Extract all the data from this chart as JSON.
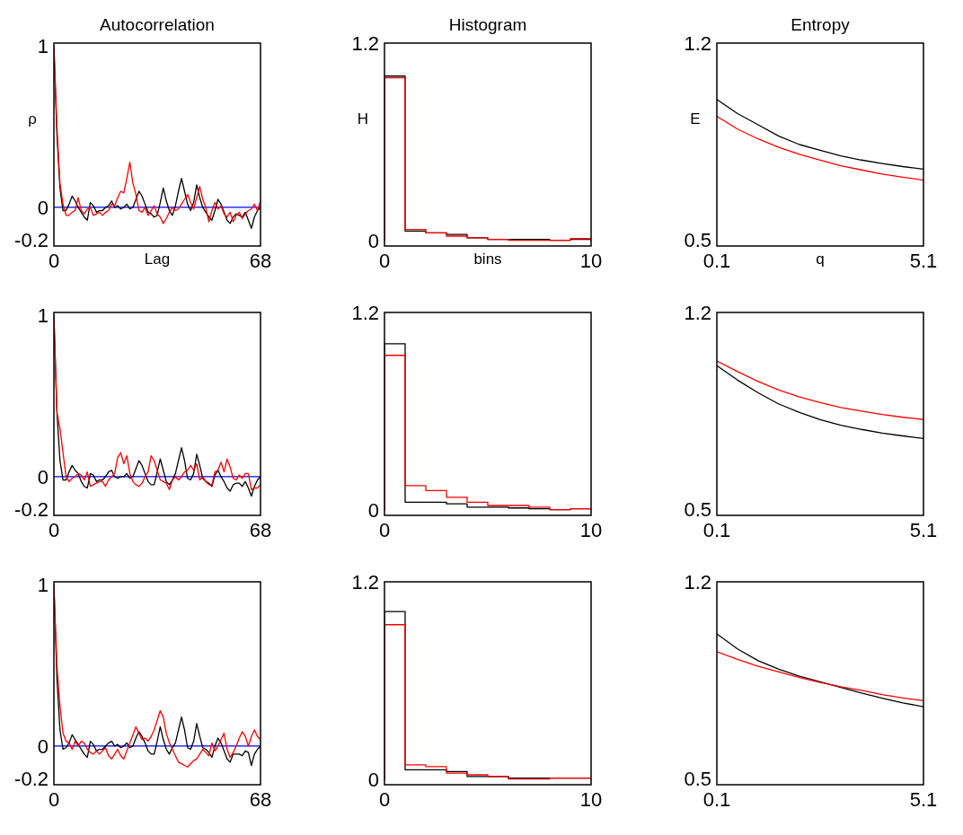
{
  "chart_data": [
    {
      "type": "line",
      "title": "Autocorrelation",
      "xlabel": "Lag",
      "ylabel": "ρ",
      "xlim": [
        0,
        68
      ],
      "xticks": [
        0,
        68
      ],
      "ylim": [
        -0.24,
        1.02
      ],
      "yticks": [
        -0.2,
        0,
        1
      ],
      "ref_lines": [
        {
          "axis": "y",
          "value": 0,
          "color": "#0000ff"
        }
      ],
      "x": [
        0,
        1,
        2,
        3,
        4,
        5,
        6,
        7,
        8,
        9,
        10,
        11,
        12,
        13,
        14,
        15,
        16,
        17,
        18,
        19,
        20,
        21,
        22,
        23,
        24,
        25,
        26,
        27,
        28,
        29,
        30,
        31,
        32,
        33,
        34,
        35,
        36,
        37,
        38,
        39,
        40,
        41,
        42,
        43,
        44,
        45,
        46,
        47,
        48,
        49,
        50,
        51,
        52,
        53,
        54,
        55,
        56,
        57,
        58,
        59,
        60,
        61,
        62,
        63,
        64,
        65,
        66,
        67,
        68
      ],
      "series": [
        {
          "color": "#000000",
          "values": [
            1.0,
            0.45,
            0.12,
            -0.02,
            -0.02,
            0.02,
            0.07,
            0.04,
            0.0,
            -0.03,
            -0.06,
            -0.08,
            0.03,
            0.01,
            -0.03,
            -0.02,
            -0.02,
            0.0,
            0.01,
            0.04,
            0.0,
            0.01,
            -0.01,
            0.0,
            0.02,
            -0.01,
            0.0,
            0.05,
            0.1,
            0.07,
            0.02,
            -0.03,
            -0.04,
            -0.06,
            -0.05,
            0.03,
            0.12,
            0.04,
            -0.02,
            -0.05,
            0.01,
            0.1,
            0.18,
            0.1,
            0.02,
            -0.02,
            0.03,
            0.14,
            0.06,
            0.0,
            -0.03,
            -0.06,
            -0.08,
            -0.02,
            0.05,
            0.02,
            -0.03,
            -0.08,
            -0.1,
            -0.06,
            -0.04,
            -0.05,
            -0.06,
            -0.03,
            -0.08,
            -0.13,
            -0.06,
            -0.02,
            0.0
          ]
        },
        {
          "color": "#ff0000",
          "values": [
            1.0,
            0.5,
            0.15,
            0.02,
            -0.05,
            -0.05,
            -0.03,
            -0.02,
            0.06,
            -0.02,
            -0.04,
            -0.01,
            0.0,
            -0.05,
            -0.04,
            -0.03,
            -0.05,
            -0.03,
            -0.02,
            0.02,
            0.01,
            0.06,
            0.1,
            0.09,
            0.18,
            0.28,
            0.15,
            0.08,
            -0.02,
            -0.03,
            0.0,
            -0.05,
            -0.02,
            0.01,
            -0.04,
            -0.06,
            -0.1,
            -0.07,
            -0.03,
            0.0,
            -0.02,
            -0.01,
            0.02,
            0.05,
            0.08,
            0.03,
            -0.01,
            0.06,
            0.13,
            0.05,
            0.0,
            -0.09,
            -0.02,
            0.03,
            -0.01,
            0.01,
            -0.04,
            -0.06,
            -0.03,
            -0.09,
            -0.05,
            -0.03,
            -0.07,
            -0.04,
            -0.02,
            -0.01,
            0.02,
            -0.02,
            0.04
          ]
        }
      ]
    },
    {
      "type": "histogram",
      "title": "Histogram",
      "xlabel": "bins",
      "ylabel": "H",
      "xlim": [
        0,
        10
      ],
      "xticks": [
        0,
        10
      ],
      "ylim": [
        -0.03,
        1.2
      ],
      "yticks": [
        0,
        1.2
      ],
      "bins": [
        0,
        1,
        2,
        3,
        4,
        5,
        6,
        7,
        8,
        9,
        10
      ],
      "series": [
        {
          "color": "#000000",
          "values": [
            1.0,
            0.06,
            0.05,
            0.04,
            0.02,
            0.01,
            0.01,
            0.01,
            0.005,
            0.01
          ]
        },
        {
          "color": "#ff0000",
          "values": [
            0.99,
            0.07,
            0.05,
            0.03,
            0.02,
            0.01,
            0.005,
            0.005,
            0.005,
            0.015
          ]
        }
      ]
    },
    {
      "type": "line",
      "title": "Entropy",
      "xlabel": "q",
      "ylabel": "E",
      "xlim": [
        0.1,
        5.1
      ],
      "xticks": [
        0.1,
        5.1
      ],
      "ylim": [
        0.48,
        1.2
      ],
      "yticks": [
        0.5,
        1.2
      ],
      "x": [
        0.1,
        0.6,
        1.1,
        1.6,
        2.1,
        2.6,
        3.1,
        3.6,
        4.1,
        4.6,
        5.1
      ],
      "series": [
        {
          "color": "#000000",
          "values": [
            1.0,
            0.95,
            0.91,
            0.87,
            0.84,
            0.82,
            0.8,
            0.785,
            0.773,
            0.762,
            0.753
          ]
        },
        {
          "color": "#ff0000",
          "values": [
            0.94,
            0.895,
            0.86,
            0.83,
            0.805,
            0.785,
            0.765,
            0.75,
            0.735,
            0.724,
            0.714
          ]
        }
      ]
    },
    {
      "type": "line",
      "xlim": [
        0,
        68
      ],
      "xticks": [
        0,
        68
      ],
      "ylim": [
        -0.24,
        1.02
      ],
      "yticks": [
        -0.2,
        0,
        1
      ],
      "ref_lines": [
        {
          "axis": "y",
          "value": 0,
          "color": "#0000ff"
        }
      ],
      "x": [
        0,
        1,
        2,
        3,
        4,
        5,
        6,
        7,
        8,
        9,
        10,
        11,
        12,
        13,
        14,
        15,
        16,
        17,
        18,
        19,
        20,
        21,
        22,
        23,
        24,
        25,
        26,
        27,
        28,
        29,
        30,
        31,
        32,
        33,
        34,
        35,
        36,
        37,
        38,
        39,
        40,
        41,
        42,
        43,
        44,
        45,
        46,
        47,
        48,
        49,
        50,
        51,
        52,
        53,
        54,
        55,
        56,
        57,
        58,
        59,
        60,
        61,
        62,
        63,
        64,
        65,
        66,
        67,
        68
      ],
      "series": [
        {
          "color": "#000000",
          "values": [
            1.0,
            0.4,
            0.1,
            -0.02,
            -0.02,
            0.03,
            0.07,
            0.04,
            0.02,
            -0.03,
            -0.06,
            -0.07,
            0.02,
            0.01,
            -0.03,
            -0.02,
            -0.02,
            0.0,
            0.03,
            0.04,
            0.0,
            -0.01,
            0.0,
            0.0,
            0.02,
            -0.01,
            0.0,
            0.05,
            0.1,
            0.07,
            0.02,
            -0.03,
            -0.05,
            -0.05,
            0.03,
            0.11,
            0.04,
            -0.03,
            -0.05,
            -0.02,
            0.02,
            0.1,
            0.18,
            0.1,
            -0.01,
            -0.02,
            0.02,
            0.14,
            0.07,
            -0.01,
            -0.03,
            -0.04,
            -0.06,
            0.01,
            0.04,
            0.0,
            -0.03,
            -0.07,
            -0.09,
            -0.05,
            -0.04,
            -0.04,
            -0.06,
            -0.03,
            -0.07,
            -0.12,
            -0.06,
            -0.02,
            0.0
          ]
        },
        {
          "color": "#ff0000",
          "values": [
            1.0,
            0.4,
            0.3,
            0.15,
            0.0,
            -0.03,
            -0.01,
            0.0,
            0.02,
            0.01,
            -0.02,
            0.03,
            -0.06,
            -0.05,
            -0.04,
            -0.03,
            -0.03,
            -0.06,
            -0.02,
            0.0,
            0.02,
            0.12,
            0.15,
            0.08,
            0.13,
            0.02,
            -0.03,
            -0.05,
            -0.06,
            -0.04,
            0.0,
            0.03,
            0.13,
            0.1,
            0.04,
            -0.02,
            -0.03,
            -0.04,
            -0.08,
            -0.02,
            0.0,
            -0.02,
            0.0,
            0.03,
            0.04,
            0.07,
            0.04,
            0.08,
            -0.02,
            0.0,
            -0.03,
            -0.05,
            -0.05,
            0.03,
            0.04,
            0.09,
            0.03,
            0.11,
            0.06,
            -0.01,
            -0.02,
            0.01,
            -0.01,
            0.02,
            0.02,
            -0.08,
            -0.07,
            -0.07,
            -0.05
          ]
        }
      ]
    },
    {
      "type": "histogram",
      "xlim": [
        0,
        10
      ],
      "xticks": [
        0,
        10
      ],
      "ylim": [
        -0.03,
        1.2
      ],
      "yticks": [
        0,
        1.2
      ],
      "bins": [
        0,
        1,
        2,
        3,
        4,
        5,
        6,
        7,
        8,
        9,
        10
      ],
      "series": [
        {
          "color": "#000000",
          "values": [
            1.01,
            0.05,
            0.05,
            0.04,
            0.02,
            0.02,
            0.015,
            0.01,
            0.005,
            0.01
          ]
        },
        {
          "color": "#ff0000",
          "values": [
            0.94,
            0.15,
            0.12,
            0.08,
            0.05,
            0.03,
            0.03,
            0.02,
            0.005,
            0.01
          ]
        }
      ]
    },
    {
      "type": "line",
      "xlim": [
        0.1,
        5.1
      ],
      "xticks": [
        0.1,
        5.1
      ],
      "ylim": [
        0.48,
        1.2
      ],
      "yticks": [
        0.5,
        1.2
      ],
      "x": [
        0.1,
        0.6,
        1.1,
        1.6,
        2.1,
        2.6,
        3.1,
        3.6,
        4.1,
        4.6,
        5.1
      ],
      "series": [
        {
          "color": "#000000",
          "values": [
            1.011,
            0.96,
            0.915,
            0.875,
            0.845,
            0.82,
            0.8,
            0.785,
            0.772,
            0.762,
            0.753
          ]
        },
        {
          "color": "#ff0000",
          "values": [
            1.028,
            0.99,
            0.955,
            0.925,
            0.9,
            0.88,
            0.863,
            0.85,
            0.838,
            0.828,
            0.82
          ]
        }
      ]
    },
    {
      "type": "line",
      "xlim": [
        0,
        68
      ],
      "xticks": [
        0,
        68
      ],
      "ylim": [
        -0.24,
        1.02
      ],
      "yticks": [
        -0.2,
        0,
        1
      ],
      "ref_lines": [
        {
          "axis": "y",
          "value": 0,
          "color": "#0000ff"
        }
      ],
      "x": [
        0,
        1,
        2,
        3,
        4,
        5,
        6,
        7,
        8,
        9,
        10,
        11,
        12,
        13,
        14,
        15,
        16,
        17,
        18,
        19,
        20,
        21,
        22,
        23,
        24,
        25,
        26,
        27,
        28,
        29,
        30,
        31,
        32,
        33,
        34,
        35,
        36,
        37,
        38,
        39,
        40,
        41,
        42,
        43,
        44,
        45,
        46,
        47,
        48,
        49,
        50,
        51,
        52,
        53,
        54,
        55,
        56,
        57,
        58,
        59,
        60,
        61,
        62,
        63,
        64,
        65,
        66,
        67,
        68
      ],
      "series": [
        {
          "color": "#000000",
          "values": [
            1.0,
            0.42,
            0.1,
            -0.02,
            -0.01,
            0.02,
            0.07,
            0.04,
            0.01,
            -0.02,
            -0.05,
            -0.07,
            0.03,
            0.01,
            -0.03,
            -0.02,
            -0.02,
            0.0,
            0.02,
            0.03,
            0.0,
            0.01,
            -0.01,
            0.0,
            0.02,
            -0.01,
            0.0,
            0.05,
            0.09,
            0.06,
            0.02,
            -0.03,
            -0.05,
            -0.05,
            0.03,
            0.12,
            0.04,
            -0.02,
            -0.05,
            -0.01,
            0.02,
            0.1,
            0.18,
            0.1,
            -0.01,
            -0.02,
            0.03,
            0.14,
            0.06,
            -0.01,
            -0.02,
            -0.04,
            -0.07,
            0.0,
            0.05,
            0.02,
            -0.03,
            -0.08,
            -0.1,
            -0.05,
            -0.05,
            -0.05,
            -0.06,
            -0.03,
            -0.04,
            -0.12,
            -0.05,
            -0.02,
            0.0
          ]
        },
        {
          "color": "#ff0000",
          "values": [
            1.0,
            0.5,
            0.25,
            0.08,
            0.03,
            0.02,
            -0.02,
            0.03,
            0.0,
            0.03,
            0.02,
            -0.02,
            -0.04,
            -0.05,
            -0.03,
            -0.05,
            -0.03,
            -0.01,
            -0.06,
            -0.08,
            -0.05,
            -0.02,
            -0.06,
            -0.08,
            -0.03,
            0.02,
            0.07,
            0.12,
            0.08,
            0.04,
            0.05,
            0.03,
            0.06,
            0.1,
            0.16,
            0.22,
            0.18,
            0.08,
            0.02,
            -0.02,
            -0.06,
            -0.1,
            -0.11,
            -0.12,
            -0.13,
            -0.11,
            -0.09,
            -0.08,
            -0.05,
            -0.02,
            -0.04,
            -0.06,
            0.02,
            -0.03,
            0.0,
            0.04,
            0.08,
            -0.02,
            -0.07,
            -0.04,
            0.0,
            0.05,
            0.09,
            0.06,
            0.0,
            0.06,
            0.1,
            0.06,
            0.04
          ]
        }
      ]
    },
    {
      "type": "histogram",
      "xlim": [
        0,
        10
      ],
      "xticks": [
        0,
        10
      ],
      "ylim": [
        -0.03,
        1.2
      ],
      "yticks": [
        0,
        1.2
      ],
      "bins": [
        0,
        1,
        2,
        3,
        4,
        5,
        6,
        7,
        8,
        9,
        10
      ],
      "series": [
        {
          "color": "#000000",
          "values": [
            1.02,
            0.06,
            0.06,
            0.05,
            0.02,
            0.02,
            0.01,
            0.01,
            0.01,
            0.01
          ]
        },
        {
          "color": "#ff0000",
          "values": [
            0.94,
            0.09,
            0.08,
            0.04,
            0.03,
            0.02,
            0.005,
            0.005,
            0.01,
            0.01
          ]
        }
      ]
    },
    {
      "type": "line",
      "xlim": [
        0.1,
        5.1
      ],
      "xticks": [
        0.1,
        5.1
      ],
      "ylim": [
        0.48,
        1.2
      ],
      "yticks": [
        0.5,
        1.2
      ],
      "x": [
        0.1,
        0.6,
        1.1,
        1.6,
        2.1,
        2.6,
        3.1,
        3.6,
        4.1,
        4.6,
        5.1
      ],
      "series": [
        {
          "color": "#000000",
          "values": [
            1.015,
            0.962,
            0.92,
            0.89,
            0.865,
            0.845,
            0.825,
            0.805,
            0.787,
            0.77,
            0.757
          ]
        },
        {
          "color": "#ff0000",
          "values": [
            0.952,
            0.925,
            0.9,
            0.88,
            0.86,
            0.843,
            0.828,
            0.815,
            0.8,
            0.788,
            0.778
          ]
        }
      ]
    }
  ]
}
